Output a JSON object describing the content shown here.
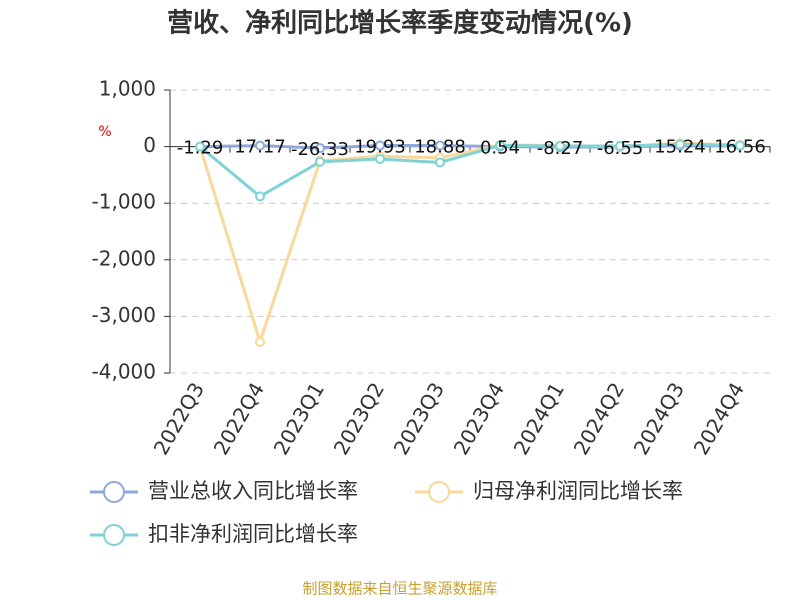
{
  "chart_data": {
    "type": "line",
    "title": "营收、净利同比增长率季度变动情况(%)",
    "y_label": "%",
    "source": "制图数据来自恒生聚源数据库",
    "categories": [
      "2022Q3",
      "2022Q4",
      "2023Q1",
      "2023Q2",
      "2023Q3",
      "2023Q4",
      "2024Q1",
      "2024Q2",
      "2024Q3",
      "2024Q4"
    ],
    "series": [
      {
        "name": "营业总收入同比增长率",
        "color": "#8fa8d8",
        "values": [
          -1.29,
          17.17,
          -26.33,
          19.93,
          18.88,
          0.54,
          -8.27,
          -6.55,
          15.24,
          16.56
        ],
        "show_labels": true
      },
      {
        "name": "归母净利润同比增长率",
        "color": "#f9d89b",
        "values": [
          0,
          -3450,
          -250,
          -170,
          -200,
          30,
          20,
          0,
          60,
          30
        ],
        "show_labels": false
      },
      {
        "name": "扣非净利润同比增长率",
        "color": "#7fd3d6",
        "values": [
          0,
          -880,
          -270,
          -220,
          -280,
          20,
          10,
          10,
          40,
          20
        ],
        "show_labels": false
      }
    ],
    "ylim": [
      -4000,
      1000
    ],
    "yticks": [
      {
        "value": -4000,
        "label": "-4,000"
      },
      {
        "value": -3000,
        "label": "-3,000"
      },
      {
        "value": -2000,
        "label": "-2,000"
      },
      {
        "value": -1000,
        "label": "-1,000"
      },
      0,
      {
        "value": 1000,
        "label": "1,000"
      }
    ],
    "grid": true,
    "legend": "bottom"
  }
}
